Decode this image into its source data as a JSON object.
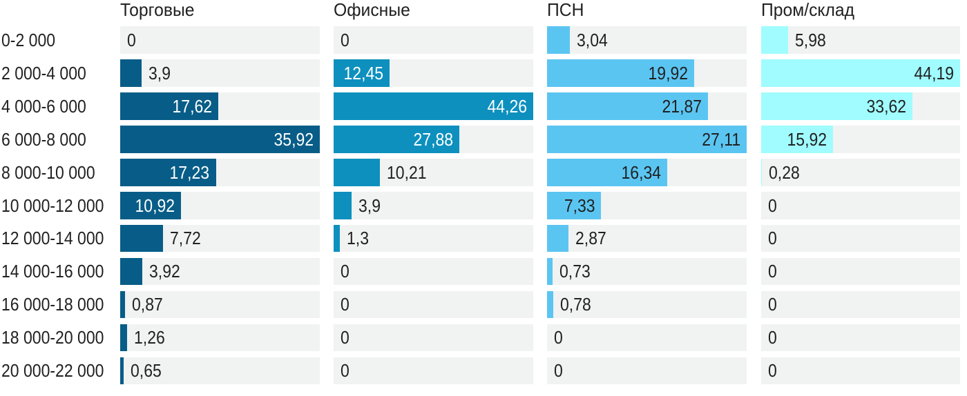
{
  "chart_data": {
    "type": "bar",
    "orientation": "horizontal",
    "title": "",
    "xlabel": "",
    "ylabel": "",
    "grid": false,
    "legend_position": "column headers on top",
    "value_scaling": "each column is scaled independently so that the column maximum fills the full track width",
    "decimal_separator": ",",
    "track_color": "#f1f2f2",
    "label_color": "#212121",
    "background_color": "#ffffff",
    "categories": [
      "0-2 000",
      "2 000-4 000",
      "4 000-6 000",
      "6 000-8 000",
      "8 000-10 000",
      "10 000-12 000",
      "12 000-14 000",
      "14 000-16 000",
      "16 000-18 000",
      "18 000-20 000",
      "20 000-22 000"
    ],
    "series": [
      {
        "name": "Торговые",
        "color": "#075d87",
        "inside_label_color": "#ffffff",
        "values": [
          0,
          3.9,
          17.62,
          35.92,
          17.23,
          10.92,
          7.72,
          3.92,
          0.87,
          1.26,
          0.65
        ],
        "labels": [
          "0",
          "3,9",
          "17,62",
          "35,92",
          "17,23",
          "10,92",
          "7,72",
          "3,92",
          "0,87",
          "1,26",
          "0,65"
        ]
      },
      {
        "name": "Офисные",
        "color": "#0d90be",
        "inside_label_color": "#ffffff",
        "values": [
          0,
          12.45,
          44.26,
          27.88,
          10.21,
          3.9,
          1.3,
          0,
          0,
          0,
          0
        ],
        "labels": [
          "0",
          "12,45",
          "44,26",
          "27,88",
          "10,21",
          "3,9",
          "1,3",
          "0",
          "0",
          "0",
          "0"
        ]
      },
      {
        "name": "ПСН",
        "color": "#5bc5f2",
        "inside_label_color": "#212121",
        "values": [
          3.04,
          19.92,
          21.87,
          27.11,
          16.34,
          7.33,
          2.87,
          0.73,
          0.78,
          0,
          0
        ],
        "labels": [
          "3,04",
          "19,92",
          "21,87",
          "27,11",
          "16,34",
          "7,33",
          "2,87",
          "0,73",
          "0,78",
          "0",
          "0"
        ]
      },
      {
        "name": "Пром/склад",
        "color": "#a0fcfe",
        "inside_label_color": "#212121",
        "values": [
          5.98,
          44.19,
          33.62,
          15.92,
          0.28,
          0,
          0,
          0,
          0,
          0,
          0
        ],
        "labels": [
          "5,98",
          "44,19",
          "33,62",
          "15,92",
          "0,28",
          "0",
          "0",
          "0",
          "0",
          "0",
          "0"
        ]
      }
    ]
  }
}
